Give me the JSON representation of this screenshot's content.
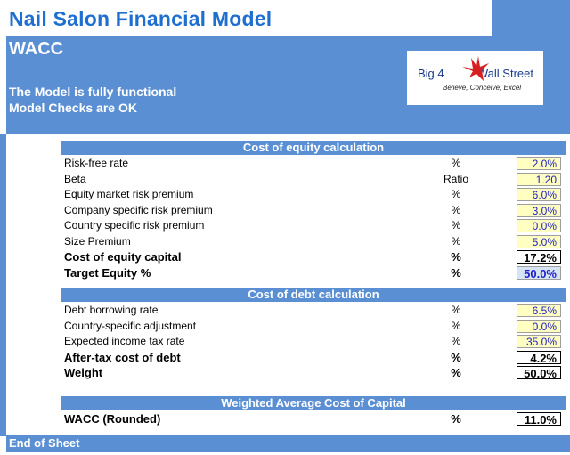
{
  "title": "Nail Salon Financial Model",
  "header": {
    "sheet": "WACC",
    "status_line1": "The Model is fully functional",
    "status_line2": "Model Checks are OK",
    "logo": {
      "brand_left": "Big 4",
      "brand_right": "Wall Street",
      "tagline": "Believe, Conceive, Excel"
    }
  },
  "sections": {
    "equity": {
      "title": "Cost of equity calculation",
      "rows": [
        {
          "label": "Risk-free rate",
          "unit": "%",
          "value": "2.0%"
        },
        {
          "label": "Beta",
          "unit": "Ratio",
          "value": "1.20"
        },
        {
          "label": "Equity market risk premium",
          "unit": "%",
          "value": "6.0%"
        },
        {
          "label": "Company specific risk premium",
          "unit": "%",
          "value": "3.0%"
        },
        {
          "label": "Country specific risk premium",
          "unit": "%",
          "value": "0.0%"
        },
        {
          "label": "Size Premium",
          "unit": "%",
          "value": "5.0%"
        },
        {
          "label": "Cost of equity capital",
          "unit": "%",
          "value": "17.2%"
        },
        {
          "label": "Target Equity %",
          "unit": "%",
          "value": "50.0%"
        }
      ]
    },
    "debt": {
      "title": "Cost of debt calculation",
      "rows": [
        {
          "label": "Debt borrowing rate",
          "unit": "%",
          "value": "6.5%"
        },
        {
          "label": "Country-specific adjustment",
          "unit": "%",
          "value": "0.0%"
        },
        {
          "label": "Expected income tax rate",
          "unit": "%",
          "value": "35.0%"
        },
        {
          "label": "After-tax cost of debt",
          "unit": "%",
          "value": "4.2%"
        },
        {
          "label": "Weight",
          "unit": "%",
          "value": "50.0%"
        }
      ]
    },
    "wacc": {
      "title": "Weighted Average Cost of Capital",
      "rows": [
        {
          "label": "WACC (Rounded)",
          "unit": "%",
          "value": "11.0%"
        }
      ]
    }
  },
  "footer": "End of Sheet"
}
